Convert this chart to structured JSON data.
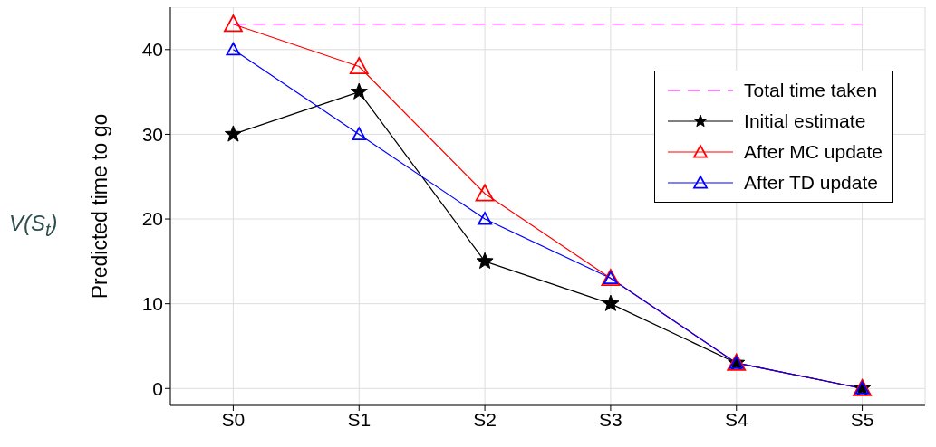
{
  "chart_data": {
    "type": "line",
    "ylabel": "Predicted time to go",
    "annotations": [
      "V(S$_{t}$)"
    ],
    "categories": [
      "S0",
      "S1",
      "S2",
      "S3",
      "S4",
      "S5"
    ],
    "series": [
      {
        "name": "Total time taken",
        "color": "#ff00ff",
        "values": [
          43,
          43,
          43,
          43,
          43,
          43
        ],
        "line_style": "dashed",
        "marker": "none"
      },
      {
        "name": "Initial estimate",
        "color": "#000000",
        "values": [
          30,
          35,
          15,
          10,
          3,
          0
        ],
        "marker": "star"
      },
      {
        "name": "After MC update",
        "color": "#ff0000",
        "values": [
          43,
          38,
          23,
          13,
          3,
          0
        ],
        "marker": "triangle"
      },
      {
        "name": "After TD update",
        "color": "#0000ff",
        "values": [
          40,
          30,
          20,
          13,
          3,
          0
        ],
        "marker": "triangle"
      }
    ],
    "ylim": [
      -2,
      45
    ],
    "yticks": [
      0,
      10,
      20,
      30,
      40
    ],
    "grid": true,
    "legend": "top right",
    "line_style": "solid"
  }
}
